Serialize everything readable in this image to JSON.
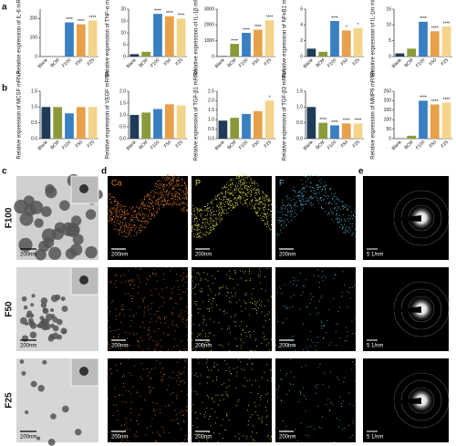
{
  "chart_data": [
    {
      "type": "bar",
      "y_label": "Relative expression of IL-6 mRNA",
      "categories": [
        "Blank",
        "BCM",
        "F100",
        "F50",
        "F25"
      ],
      "values": [
        1,
        0.3,
        180,
        170,
        190
      ],
      "colors": [
        "#1f3b57",
        "#8a9a3a",
        "#3a7fc1",
        "#e8a04a",
        "#f3d48a"
      ],
      "ylim": [
        0,
        250
      ],
      "yticks": [
        0,
        100,
        200
      ],
      "annotations": [
        null,
        null,
        "****",
        "****",
        "****"
      ]
    },
    {
      "type": "bar",
      "y_label": "Relative expression of TNF-α mRNA",
      "categories": [
        "Blank",
        "BCM",
        "F100",
        "F50",
        "F25"
      ],
      "values": [
        1,
        2,
        18,
        17,
        16
      ],
      "colors": [
        "#1f3b57",
        "#8a9a3a",
        "#3a7fc1",
        "#e8a04a",
        "#f3d48a"
      ],
      "ylim": [
        0,
        20
      ],
      "yticks": [
        0,
        5,
        10,
        15,
        20
      ],
      "annotations": [
        null,
        null,
        "****",
        "****",
        "****"
      ]
    },
    {
      "type": "bar",
      "y_label": "Relative expression of IL-1β mRNA",
      "categories": [
        "Blank",
        "BCM",
        "F100",
        "F50",
        "F25"
      ],
      "values": [
        30,
        800,
        1500,
        1700,
        2300
      ],
      "colors": [
        "#1f3b57",
        "#8a9a3a",
        "#3a7fc1",
        "#e8a04a",
        "#f3d48a"
      ],
      "ylim": [
        0,
        3000
      ],
      "yticks": [
        0,
        1000,
        2000,
        3000
      ],
      "annotations": [
        null,
        "****",
        "****",
        "****",
        "****"
      ]
    },
    {
      "type": "bar",
      "y_label": "Relative expression of NFκB1 mRNA",
      "categories": [
        "Blank",
        "BCM",
        "F100",
        "F50",
        "F25"
      ],
      "values": [
        1,
        0.6,
        4.5,
        3.3,
        3.6
      ],
      "colors": [
        "#1f3b57",
        "#8a9a3a",
        "#3a7fc1",
        "#e8a04a",
        "#f3d48a"
      ],
      "ylim": [
        0,
        6
      ],
      "yticks": [
        0,
        2,
        4,
        6
      ],
      "annotations": [
        null,
        null,
        "****",
        "*",
        "*"
      ]
    },
    {
      "type": "bar",
      "y_label": "Relative expression of IL-1rn mRNA",
      "categories": [
        "Blank",
        "BCM",
        "F100",
        "F50",
        "F25"
      ],
      "values": [
        1,
        2.5,
        11,
        8,
        9.5
      ],
      "colors": [
        "#1f3b57",
        "#8a9a3a",
        "#3a7fc1",
        "#e8a04a",
        "#f3d48a"
      ],
      "ylim": [
        0,
        15
      ],
      "yticks": [
        0,
        5,
        10,
        15
      ],
      "annotations": [
        null,
        null,
        "****",
        "****",
        "****"
      ]
    },
    {
      "type": "bar",
      "y_label": "Relative expression of MCSF mRNA",
      "categories": [
        "Blank",
        "BCM",
        "F100",
        "F50",
        "F25"
      ],
      "values": [
        1,
        1,
        0.8,
        1,
        1
      ],
      "colors": [
        "#1f3b57",
        "#8a9a3a",
        "#3a7fc1",
        "#e8a04a",
        "#f3d48a"
      ],
      "ylim": [
        0,
        1.5
      ],
      "yticks": [
        {
          "value": 0,
          "label": "0.0"
        },
        0.5,
        {
          "value": 1,
          "label": "1.0"
        },
        1.5
      ],
      "annotations": [
        null,
        null,
        null,
        null,
        null
      ]
    },
    {
      "type": "bar",
      "y_label": "Relative expression of VEGF mRNA",
      "categories": [
        "Blank",
        "BCM",
        "F100",
        "F50",
        "F25"
      ],
      "values": [
        1,
        1.1,
        1.25,
        1.45,
        1.4
      ],
      "colors": [
        "#1f3b57",
        "#8a9a3a",
        "#3a7fc1",
        "#e8a04a",
        "#f3d48a"
      ],
      "ylim": [
        0,
        2
      ],
      "yticks": [
        {
          "value": 0,
          "label": "0.0"
        },
        0.5,
        {
          "value": 1,
          "label": "1.0"
        },
        1.5,
        {
          "value": 2,
          "label": "2.0"
        }
      ],
      "annotations": [
        null,
        null,
        null,
        null,
        null
      ]
    },
    {
      "type": "bar",
      "y_label": "Relative expression of TGF-β1 mRNA",
      "categories": [
        "Blank",
        "BCM",
        "F100",
        "F50",
        "F25"
      ],
      "values": [
        0.95,
        1.1,
        1.3,
        1.45,
        2.0
      ],
      "colors": [
        "#1f3b57",
        "#8a9a3a",
        "#3a7fc1",
        "#e8a04a",
        "#f3d48a"
      ],
      "ylim": [
        0,
        2.5
      ],
      "yticks": [
        {
          "value": 0,
          "label": "0.0"
        },
        0.5,
        {
          "value": 1,
          "label": "1.0"
        },
        1.5,
        {
          "value": 2,
          "label": "2.0"
        },
        2.5
      ],
      "annotations": [
        null,
        null,
        null,
        null,
        "*"
      ]
    },
    {
      "type": "bar",
      "y_label": "Relative expression of TGF-β3 mRNA",
      "categories": [
        "Blank",
        "BCM",
        "F100",
        "F50",
        "F25"
      ],
      "values": [
        1,
        0.5,
        0.42,
        0.48,
        0.48
      ],
      "colors": [
        "#1f3b57",
        "#8a9a3a",
        "#3a7fc1",
        "#e8a04a",
        "#f3d48a"
      ],
      "ylim": [
        0,
        1.5
      ],
      "yticks": [
        {
          "value": 0,
          "label": "0.0"
        },
        0.5,
        {
          "value": 1,
          "label": "1.0"
        },
        1.5
      ],
      "annotations": [
        null,
        "****",
        "****",
        "****",
        "****"
      ]
    },
    {
      "type": "bar",
      "y_label": "Relative expression of MMP9 mRNA",
      "categories": [
        "Blank",
        "BCM",
        "F100",
        "F50",
        "F25"
      ],
      "values": [
        1,
        15,
        200,
        180,
        190
      ],
      "colors": [
        "#1f3b57",
        "#8a9a3a",
        "#3a7fc1",
        "#e8a04a",
        "#f3d48a"
      ],
      "ylim": [
        0,
        250
      ],
      "yticks": [
        0,
        50,
        100,
        150,
        200,
        250
      ],
      "annotations": [
        null,
        null,
        "****",
        "****",
        "****"
      ]
    }
  ],
  "panels": {
    "labels": [
      "a",
      "b",
      "c",
      "d",
      "e"
    ]
  },
  "micrographs": {
    "rows": [
      "F100",
      "F50",
      "F25"
    ],
    "channels": [
      "Ca",
      "P",
      "F"
    ],
    "scale": "200nm",
    "diffraction_scale": "5 1/nm"
  }
}
